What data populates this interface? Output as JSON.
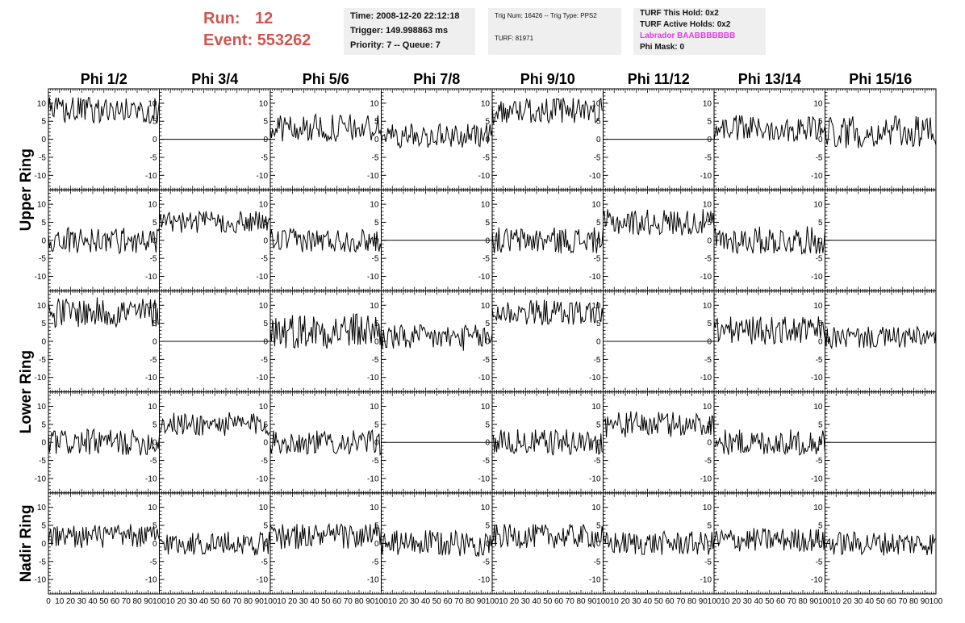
{
  "header": {
    "run_label": "Run:",
    "run_value": "12",
    "event_label": "Event:",
    "event_value": "553262",
    "time": "Time: 2008-12-20 22:12:18",
    "trigger": "Trigger: 149.998863 ms",
    "priority": "Priority: 7 -- Queue: 7",
    "trig_num": "Trig Num: 16426 -- Trig Type: PPS2",
    "turf": "TURF: 81971",
    "turf_this_hold": "TURF This Hold: 0x2",
    "turf_active_holds": "TURF Active Holds: 0x2",
    "labrador": "Labrador BAABBBBBBB",
    "phi_mask": "Phi Mask: 0"
  },
  "colors": {
    "run_text": "#d0554f",
    "labrador_text": "#e23ce6",
    "info_bg": "#efefef",
    "trace": "#000000"
  },
  "chart_data": {
    "type": "line",
    "columns": [
      "Phi 1/2",
      "Phi 3/4",
      "Phi 5/6",
      "Phi 7/8",
      "Phi 9/10",
      "Phi 11/12",
      "Phi 13/14",
      "Phi 15/16"
    ],
    "row_labels": [
      "Upper Ring",
      "Lower Ring",
      "Nadir Ring"
    ],
    "ylim": [
      -14,
      14
    ],
    "yticks": [
      -10,
      -5,
      0,
      5,
      10
    ],
    "xlim": [
      0,
      100
    ],
    "xticks": [
      0,
      10,
      20,
      30,
      40,
      50,
      60,
      70,
      80,
      90,
      100
    ],
    "panels": [
      [
        {
          "mean": 8,
          "amp": 2.6
        },
        {
          "mean": 0,
          "amp": 0
        },
        {
          "mean": 3,
          "amp": 2.8
        },
        {
          "mean": 1,
          "amp": 2.4
        },
        {
          "mean": 8,
          "amp": 2.6
        },
        {
          "mean": 0,
          "amp": 0
        },
        {
          "mean": 3,
          "amp": 2.6
        },
        {
          "mean": 2,
          "amp": 3.2
        }
      ],
      [
        {
          "mean": 0,
          "amp": 2.6
        },
        {
          "mean": 5,
          "amp": 2.2
        },
        {
          "mean": 0,
          "amp": 2.4
        },
        {
          "mean": 0,
          "amp": 0
        },
        {
          "mean": 0,
          "amp": 2.6
        },
        {
          "mean": 5,
          "amp": 2.6
        },
        {
          "mean": 0,
          "amp": 2.8
        },
        {
          "mean": 0,
          "amp": 0
        }
      ],
      [
        {
          "mean": 8,
          "amp": 3.0
        },
        {
          "mean": 0,
          "amp": 0
        },
        {
          "mean": 3,
          "amp": 3.6
        },
        {
          "mean": 1,
          "amp": 2.6
        },
        {
          "mean": 8,
          "amp": 2.6
        },
        {
          "mean": 0,
          "amp": 0
        },
        {
          "mean": 3,
          "amp": 2.8
        },
        {
          "mean": 1,
          "amp": 2.2
        }
      ],
      [
        {
          "mean": 0,
          "amp": 2.6
        },
        {
          "mean": 5,
          "amp": 2.4
        },
        {
          "mean": 0,
          "amp": 2.4
        },
        {
          "mean": 0,
          "amp": 0
        },
        {
          "mean": 0,
          "amp": 2.6
        },
        {
          "mean": 5,
          "amp": 2.6
        },
        {
          "mean": 0,
          "amp": 2.6
        },
        {
          "mean": 0,
          "amp": 0
        }
      ],
      [
        {
          "mean": 2,
          "amp": 2.4
        },
        {
          "mean": 0,
          "amp": 2.4
        },
        {
          "mean": 2,
          "amp": 2.6
        },
        {
          "mean": 0,
          "amp": 2.6
        },
        {
          "mean": 2,
          "amp": 2.4
        },
        {
          "mean": 0,
          "amp": 2.4
        },
        {
          "mean": 1,
          "amp": 2.4
        },
        {
          "mean": 0,
          "amp": 2.4
        }
      ]
    ],
    "grid": false,
    "legend": "none"
  }
}
